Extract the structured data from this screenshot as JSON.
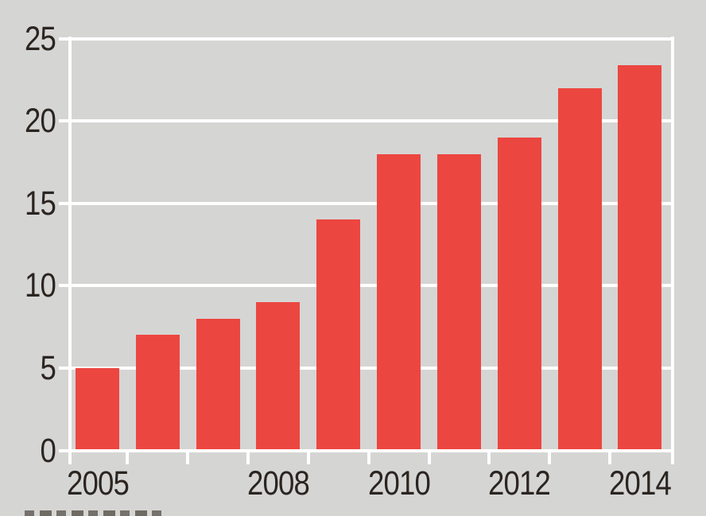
{
  "chart_data": {
    "type": "bar",
    "title": "",
    "xlabel": "",
    "ylabel": "",
    "categories": [
      "2005",
      "2006",
      "2007",
      "2008",
      "2009",
      "2010",
      "2011",
      "2012",
      "2013",
      "2014"
    ],
    "values": [
      5,
      7,
      8,
      9,
      14,
      18,
      18,
      19,
      22,
      23.4
    ],
    "ylim": [
      0,
      25
    ],
    "yticks": [
      0,
      5,
      10,
      15,
      20,
      25
    ],
    "ytick_labels": [
      "0",
      "5",
      "10",
      "15",
      "20",
      "25"
    ],
    "xticks_visible": [
      {
        "index": 0,
        "label": "2005"
      },
      {
        "index": 3,
        "label": "2008"
      },
      {
        "index": 5,
        "label": "2010"
      },
      {
        "index": 7,
        "label": "2012"
      },
      {
        "index": 9,
        "label": "2014"
      }
    ],
    "grid": true,
    "legend": "none",
    "colors": {
      "bar": "#ec4640",
      "background": "#d5d5d4",
      "grid": "#ffffff",
      "text": "#2b2520"
    }
  }
}
